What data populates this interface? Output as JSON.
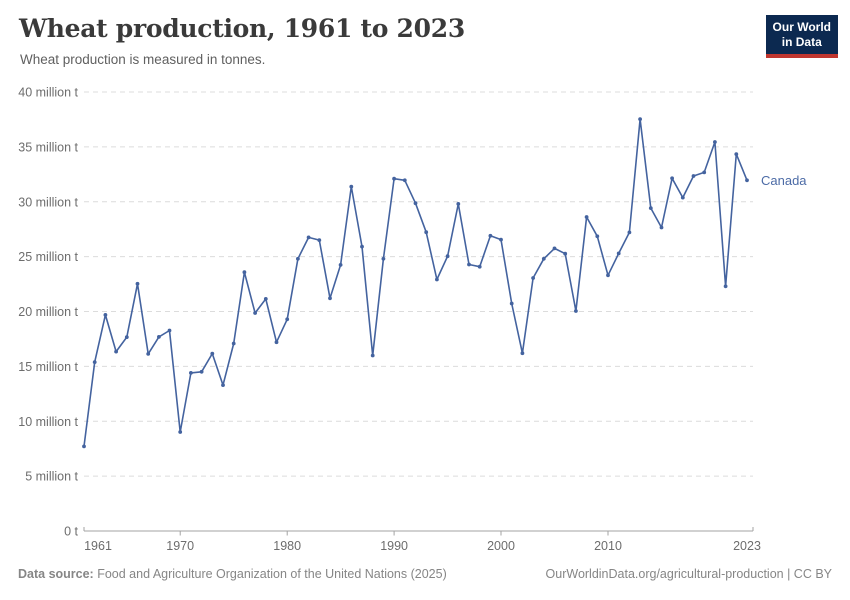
{
  "header": {
    "title": "Wheat production, 1961 to 2023",
    "subtitle": "Wheat production is measured in tonnes.",
    "logo_line1": "Our World",
    "logo_line2": "in Data"
  },
  "chart_data": {
    "type": "line",
    "title": "Wheat production, 1961 to 2023",
    "ylabel": "",
    "xlabel": "",
    "values_unit": "million tonnes",
    "grid": "horizontal dashed",
    "legend_position": "end-of-line label",
    "xlim": [
      1961,
      2023
    ],
    "ylim": [
      0,
      40
    ],
    "x": [
      1961,
      1962,
      1963,
      1964,
      1965,
      1966,
      1967,
      1968,
      1969,
      1970,
      1971,
      1972,
      1973,
      1974,
      1975,
      1976,
      1977,
      1978,
      1979,
      1980,
      1981,
      1982,
      1983,
      1984,
      1985,
      1986,
      1987,
      1988,
      1989,
      1990,
      1991,
      1992,
      1993,
      1994,
      1995,
      1996,
      1997,
      1998,
      1999,
      2000,
      2001,
      2002,
      2003,
      2004,
      2005,
      2006,
      2007,
      2008,
      2009,
      2010,
      2011,
      2012,
      2013,
      2014,
      2015,
      2016,
      2017,
      2018,
      2019,
      2020,
      2021,
      2022,
      2023
    ],
    "series": [
      {
        "name": "Canada",
        "color": "#44639f",
        "values": [
          7.71,
          15.39,
          19.69,
          16.35,
          17.67,
          22.52,
          16.14,
          17.69,
          18.27,
          9.02,
          14.41,
          14.51,
          16.16,
          13.29,
          17.08,
          23.58,
          19.86,
          21.15,
          17.2,
          19.29,
          24.8,
          26.75,
          26.51,
          21.2,
          24.25,
          31.38,
          25.91,
          15.99,
          24.8,
          32.1,
          31.95,
          29.87,
          27.23,
          22.92,
          25.04,
          29.8,
          24.28,
          24.08,
          26.9,
          26.55,
          20.73,
          16.2,
          23.05,
          24.8,
          25.75,
          25.27,
          20.05,
          28.61,
          26.85,
          23.3,
          25.29,
          27.21,
          37.53,
          29.42,
          27.65,
          32.14,
          30.38,
          32.35,
          32.67,
          35.44,
          22.3,
          34.34,
          31.95
        ]
      }
    ],
    "yticks": [
      0,
      5,
      10,
      15,
      20,
      25,
      30,
      35,
      40
    ],
    "ytick_labels": [
      "0 t",
      "5 million t",
      "10 million t",
      "15 million t",
      "20 million t",
      "25 million t",
      "30 million t",
      "35 million t",
      "40 million t"
    ],
    "xticks": [
      1961,
      1970,
      1980,
      1990,
      2000,
      2010,
      2023
    ]
  },
  "colors": {
    "line": "#44639f",
    "series_label": "#4c6ba6",
    "gridline": "#dcdcdc",
    "axis": "#a3a3a3",
    "tick_text": "#6d6d6d",
    "logo_bg": "#0c2950",
    "logo_red": "#c0362f"
  },
  "footer": {
    "source_label": "Data source:",
    "source_text": "Food and Agriculture Organization of the United Nations (2025)",
    "credit": "OurWorldinData.org/agricultural-production | CC BY"
  }
}
